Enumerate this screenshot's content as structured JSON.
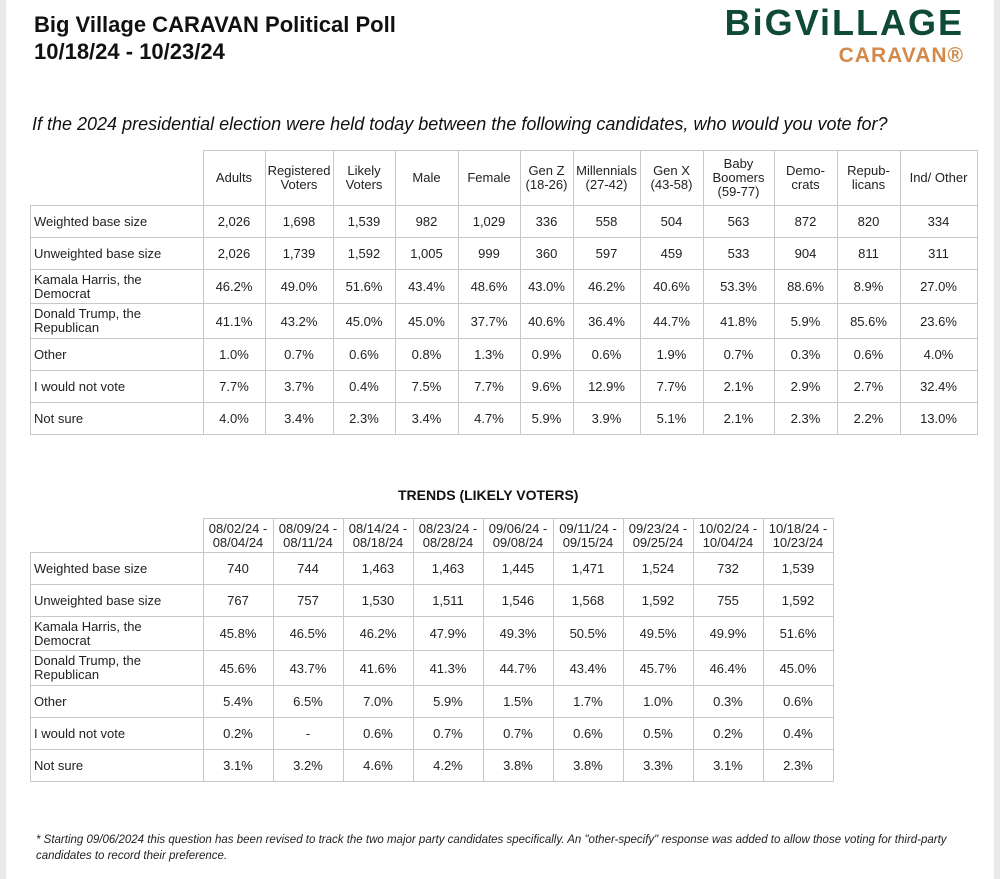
{
  "header": {
    "title_line1": "Big Village CARAVAN Political Poll",
    "title_line2": "10/18/24 - 10/23/24",
    "logo_line1": "BiGViLLAGE",
    "logo_line2": "CARAVAN®",
    "colors": {
      "logo_green": "#0e4a36",
      "logo_orange": "#d28a4c"
    }
  },
  "question": "If the 2024 presidential election were held today between the following candidates, who would you vote for?",
  "table1": {
    "headers": [
      [
        "Adults"
      ],
      [
        "Registered",
        "Voters"
      ],
      [
        "Likely",
        "Voters"
      ],
      [
        "Male"
      ],
      [
        "Female"
      ],
      [
        "Gen Z",
        "(18-26)"
      ],
      [
        "Millennials",
        "(27-42)"
      ],
      [
        "Gen X",
        "(43-58)"
      ],
      [
        "Baby",
        "Boomers",
        "(59-77)"
      ],
      [
        "Demo-",
        "crats"
      ],
      [
        "Repub-",
        "licans"
      ],
      [
        "Ind/ Other"
      ]
    ],
    "rows": [
      {
        "label": [
          "Weighted base size"
        ],
        "values": [
          "2,026",
          "1,698",
          "1,539",
          "982",
          "1,029",
          "336",
          "558",
          "504",
          "563",
          "872",
          "820",
          "334"
        ]
      },
      {
        "label": [
          "Unweighted base size"
        ],
        "values": [
          "2,026",
          "1,739",
          "1,592",
          "1,005",
          "999",
          "360",
          "597",
          "459",
          "533",
          "904",
          "811",
          "311"
        ]
      },
      {
        "label": [
          "Kamala Harris, the",
          "Democrat"
        ],
        "values": [
          "46.2%",
          "49.0%",
          "51.6%",
          "43.4%",
          "48.6%",
          "43.0%",
          "46.2%",
          "40.6%",
          "53.3%",
          "88.6%",
          "8.9%",
          "27.0%"
        ]
      },
      {
        "label": [
          "Donald Trump, the",
          "Republican"
        ],
        "values": [
          "41.1%",
          "43.2%",
          "45.0%",
          "45.0%",
          "37.7%",
          "40.6%",
          "36.4%",
          "44.7%",
          "41.8%",
          "5.9%",
          "85.6%",
          "23.6%"
        ]
      },
      {
        "label": [
          "Other"
        ],
        "values": [
          "1.0%",
          "0.7%",
          "0.6%",
          "0.8%",
          "1.3%",
          "0.9%",
          "0.6%",
          "1.9%",
          "0.7%",
          "0.3%",
          "0.6%",
          "4.0%"
        ]
      },
      {
        "label": [
          "I would not vote"
        ],
        "values": [
          "7.7%",
          "3.7%",
          "0.4%",
          "7.5%",
          "7.7%",
          "9.6%",
          "12.9%",
          "7.7%",
          "2.1%",
          "2.9%",
          "2.7%",
          "32.4%"
        ]
      },
      {
        "label": [
          "Not sure"
        ],
        "values": [
          "4.0%",
          "3.4%",
          "2.3%",
          "3.4%",
          "4.7%",
          "5.9%",
          "3.9%",
          "5.1%",
          "2.1%",
          "2.3%",
          "2.2%",
          "13.0%"
        ]
      }
    ]
  },
  "trends": {
    "title": "TRENDS (LIKELY VOTERS)",
    "headers": [
      [
        "08/02/24 -",
        "08/04/24"
      ],
      [
        "08/09/24 -",
        "08/11/24"
      ],
      [
        "08/14/24 -",
        "08/18/24"
      ],
      [
        "08/23/24 -",
        "08/28/24"
      ],
      [
        "09/06/24 -",
        "09/08/24"
      ],
      [
        "09/11/24 -",
        "09/15/24"
      ],
      [
        "09/23/24 -",
        "09/25/24"
      ],
      [
        "10/02/24 -",
        "10/04/24"
      ],
      [
        "10/18/24 -",
        "10/23/24"
      ]
    ],
    "rows": [
      {
        "label": [
          "Weighted base size"
        ],
        "values": [
          "740",
          "744",
          "1,463",
          "1,463",
          "1,445",
          "1,471",
          "1,524",
          "732",
          "1,539"
        ]
      },
      {
        "label": [
          "Unweighted base size"
        ],
        "values": [
          "767",
          "757",
          "1,530",
          "1,511",
          "1,546",
          "1,568",
          "1,592",
          "755",
          "1,592"
        ]
      },
      {
        "label": [
          "Kamala Harris, the",
          "Democrat"
        ],
        "values": [
          "45.8%",
          "46.5%",
          "46.2%",
          "47.9%",
          "49.3%",
          "50.5%",
          "49.5%",
          "49.9%",
          "51.6%"
        ]
      },
      {
        "label": [
          "Donald Trump, the",
          "Republican"
        ],
        "values": [
          "45.6%",
          "43.7%",
          "41.6%",
          "41.3%",
          "44.7%",
          "43.4%",
          "45.7%",
          "46.4%",
          "45.0%"
        ]
      },
      {
        "label": [
          "Other"
        ],
        "values": [
          "5.4%",
          "6.5%",
          "7.0%",
          "5.9%",
          "1.5%",
          "1.7%",
          "1.0%",
          "0.3%",
          "0.6%"
        ]
      },
      {
        "label": [
          "I would not vote"
        ],
        "values": [
          "0.2%",
          "-",
          "0.6%",
          "0.7%",
          "0.7%",
          "0.6%",
          "0.5%",
          "0.2%",
          "0.4%"
        ]
      },
      {
        "label": [
          "Not sure"
        ],
        "values": [
          "3.1%",
          "3.2%",
          "4.6%",
          "4.2%",
          "3.8%",
          "3.8%",
          "3.3%",
          "3.1%",
          "2.3%"
        ]
      }
    ]
  },
  "footnote": "* Starting 09/06/2024 this question has been revised to track the two major party candidates specifically. An \"other-specify\" response was added to allow those voting for third-party candidates to record their preference."
}
